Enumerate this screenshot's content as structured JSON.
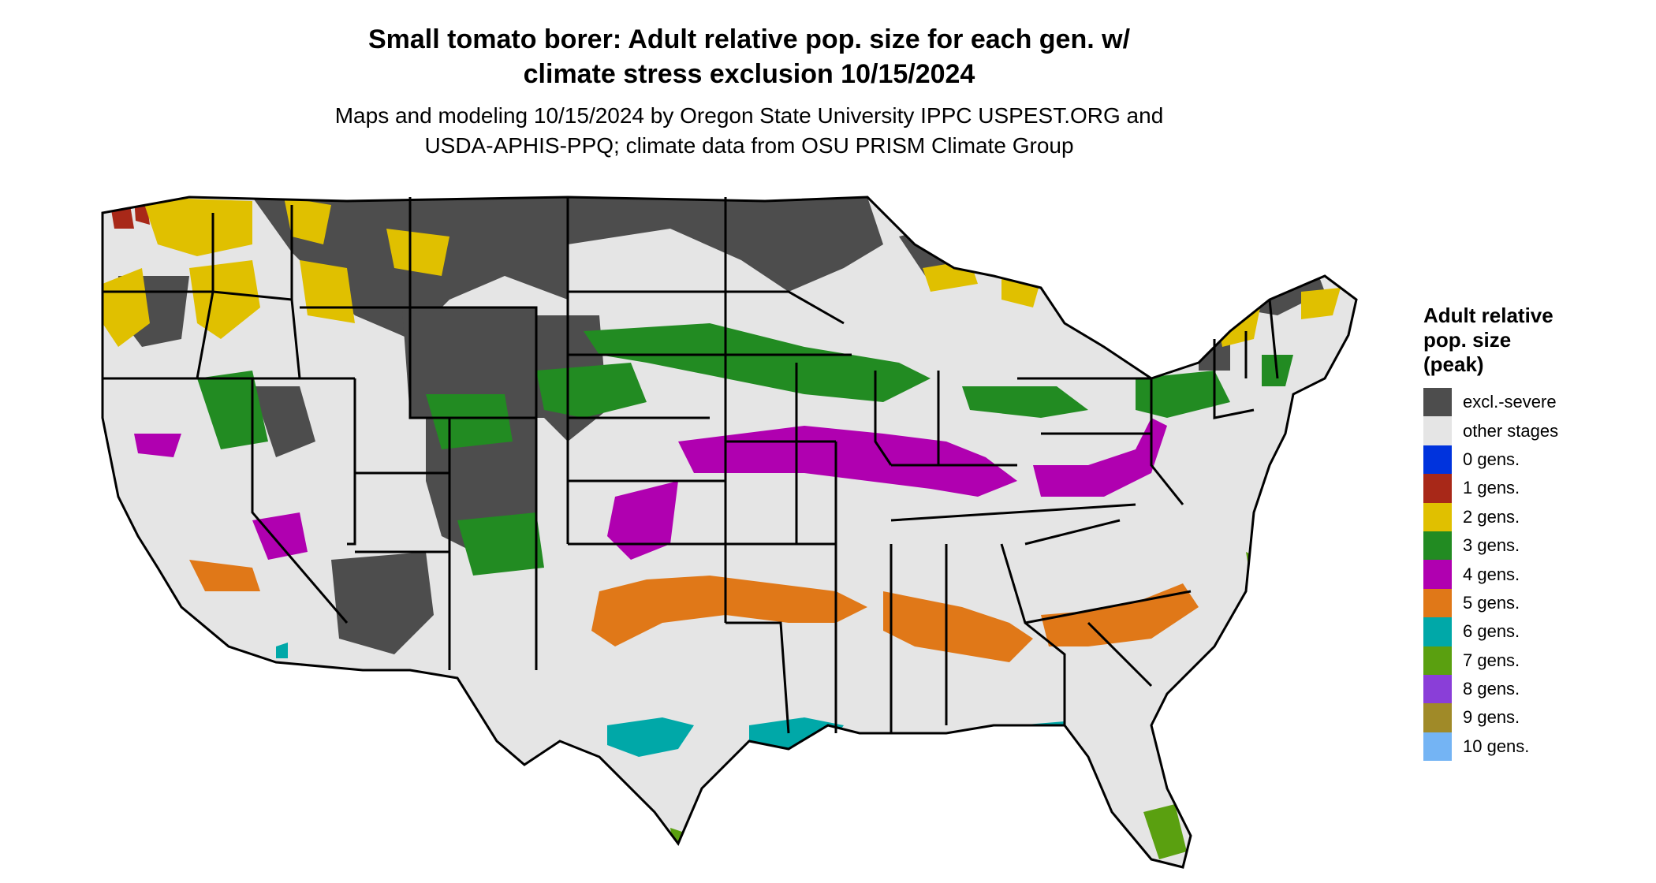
{
  "title": {
    "line1": "Small tomato borer: Adult relative pop. size for each gen. w/",
    "line2": "climate stress exclusion 10/15/2024"
  },
  "subtitle": {
    "line1": "Maps and modeling 10/15/2024 by Oregon State University IPPC USPEST.ORG and",
    "line2": "USDA-APHIS-PPQ; climate data from OSU PRISM Climate Group"
  },
  "legend": {
    "title_lines": [
      "Adult relative",
      "pop. size",
      "(peak)"
    ],
    "items": [
      {
        "label": "excl.-severe",
        "color": "#4d4d4d"
      },
      {
        "label": "other stages",
        "color": "#e5e5e5"
      },
      {
        "label": "0 gens.",
        "color": "#0033dd"
      },
      {
        "label": "1 gens.",
        "color": "#a82818"
      },
      {
        "label": "2 gens.",
        "color": "#e0c000"
      },
      {
        "label": "3 gens.",
        "color": "#228b22"
      },
      {
        "label": "4 gens.",
        "color": "#b000b0"
      },
      {
        "label": "5 gens.",
        "color": "#e07818"
      },
      {
        "label": "6 gens.",
        "color": "#00a8a8"
      },
      {
        "label": "7 gens.",
        "color": "#5aa010"
      },
      {
        "label": "8 gens.",
        "color": "#8a3ed8"
      },
      {
        "label": "9 gens.",
        "color": "#a08a28"
      },
      {
        "label": "10 gens.",
        "color": "#74b4f4"
      }
    ]
  }
}
